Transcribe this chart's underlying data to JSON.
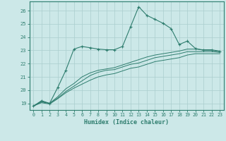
{
  "xlabel": "Humidex (Indice chaleur)",
  "background_color": "#cce8e8",
  "grid_color": "#aacece",
  "line_color": "#2e7d6e",
  "xlim": [
    -0.5,
    23.5
  ],
  "ylim": [
    18.5,
    26.7
  ],
  "xticks": [
    0,
    1,
    2,
    3,
    4,
    5,
    6,
    7,
    8,
    9,
    10,
    11,
    12,
    13,
    14,
    15,
    16,
    17,
    18,
    19,
    20,
    21,
    22,
    23
  ],
  "yticks": [
    19,
    20,
    21,
    22,
    23,
    24,
    25,
    26
  ],
  "curve1_x": [
    0,
    1,
    2,
    3,
    4,
    5,
    6,
    7,
    8,
    9,
    10,
    11,
    12,
    13,
    14,
    15,
    16,
    17,
    18,
    19,
    20,
    21,
    22,
    23
  ],
  "curve1_y": [
    18.8,
    19.2,
    19.0,
    20.2,
    21.5,
    23.1,
    23.3,
    23.2,
    23.1,
    23.05,
    23.05,
    23.3,
    24.8,
    26.3,
    25.65,
    25.35,
    25.05,
    24.65,
    23.45,
    23.7,
    23.15,
    23.0,
    23.0,
    22.9
  ],
  "curve2_x": [
    0,
    1,
    2,
    3,
    4,
    5,
    6,
    7,
    8,
    9,
    10,
    11,
    12,
    13,
    14,
    15,
    16,
    17,
    18,
    19,
    20,
    21,
    22,
    23
  ],
  "curve2_y": [
    18.8,
    19.15,
    19.0,
    19.5,
    20.1,
    20.5,
    21.0,
    21.3,
    21.5,
    21.6,
    21.7,
    21.9,
    22.1,
    22.3,
    22.5,
    22.65,
    22.75,
    22.85,
    22.95,
    23.1,
    23.1,
    23.05,
    23.05,
    22.95
  ],
  "curve3_x": [
    0,
    1,
    2,
    3,
    4,
    5,
    6,
    7,
    8,
    9,
    10,
    11,
    12,
    13,
    14,
    15,
    16,
    17,
    18,
    19,
    20,
    21,
    22,
    23
  ],
  "curve3_y": [
    18.8,
    19.1,
    19.0,
    19.4,
    19.9,
    20.3,
    20.7,
    21.1,
    21.35,
    21.5,
    21.55,
    21.75,
    21.95,
    22.05,
    22.25,
    22.45,
    22.55,
    22.65,
    22.75,
    22.9,
    22.9,
    22.9,
    22.9,
    22.85
  ],
  "curve4_x": [
    0,
    1,
    2,
    3,
    4,
    5,
    6,
    7,
    8,
    9,
    10,
    11,
    12,
    13,
    14,
    15,
    16,
    17,
    18,
    19,
    20,
    21,
    22,
    23
  ],
  "curve4_y": [
    18.8,
    19.05,
    18.95,
    19.35,
    19.8,
    20.15,
    20.45,
    20.75,
    21.0,
    21.15,
    21.25,
    21.45,
    21.65,
    21.75,
    21.95,
    22.15,
    22.25,
    22.35,
    22.45,
    22.65,
    22.75,
    22.75,
    22.75,
    22.75
  ]
}
